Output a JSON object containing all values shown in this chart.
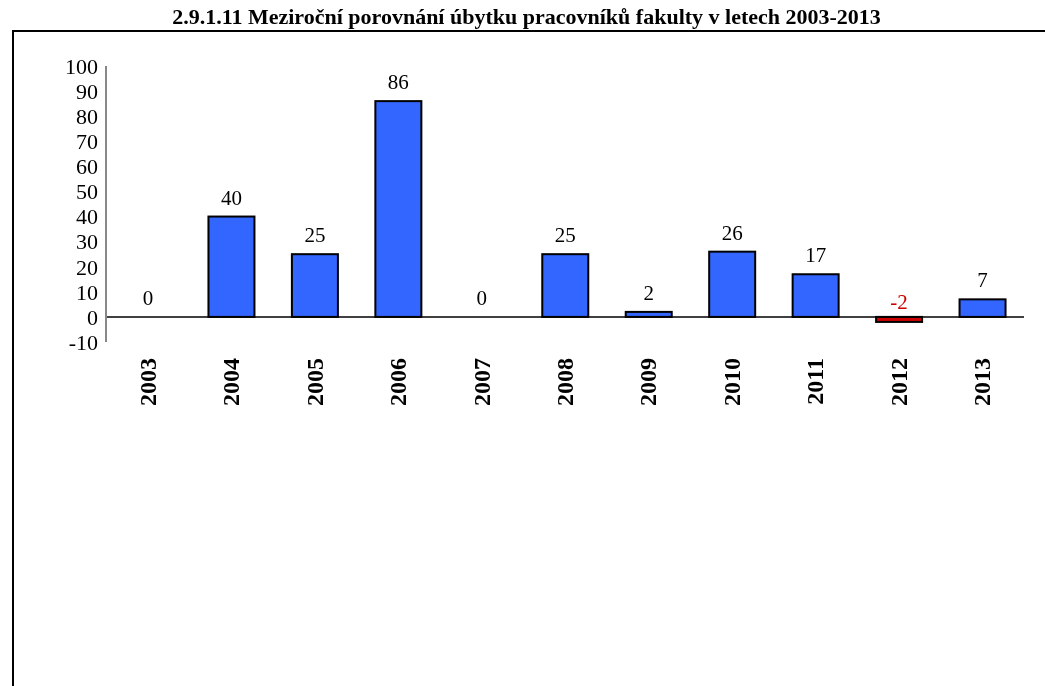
{
  "chart_data": {
    "type": "bar",
    "title": "2.9.1.11 Meziroční porovnání úbytku pracovníků fakulty v letech 2003-2013",
    "categories": [
      "2003",
      "2004",
      "2005",
      "2006",
      "2007",
      "2008",
      "2009",
      "2010",
      "2011",
      "2012",
      "2013"
    ],
    "values": [
      0,
      40,
      25,
      86,
      0,
      25,
      2,
      26,
      17,
      -2,
      7
    ],
    "colors": [
      "#3366ff",
      "#3366ff",
      "#3366ff",
      "#3366ff",
      "#3366ff",
      "#3366ff",
      "#3366ff",
      "#3366ff",
      "#3366ff",
      "#cc0000",
      "#3366ff"
    ],
    "ylim": [
      -10,
      100
    ],
    "yticks": [
      -10,
      0,
      10,
      20,
      30,
      40,
      50,
      60,
      70,
      80,
      90,
      100
    ],
    "grid": false,
    "legend": false,
    "data_labels": true
  }
}
